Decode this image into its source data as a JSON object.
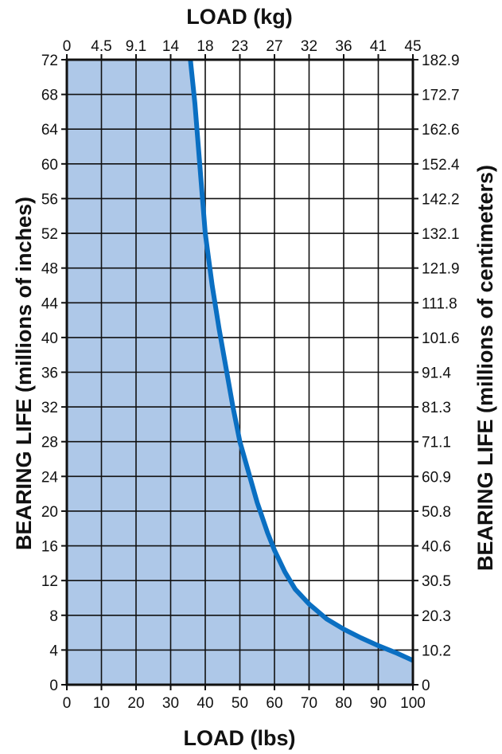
{
  "chart_data": {
    "type": "area",
    "title": "",
    "xlabel_bottom": "LOAD  (lbs)",
    "xlabel_top": "LOAD  (kg)",
    "ylabel_left": "BEARING LIFE (millions of inches)",
    "ylabel_right": "BEARING LIFE (millions of centimeters)",
    "xlim": [
      0,
      100
    ],
    "ylim": [
      0,
      72
    ],
    "grid": true,
    "x_ticks_bottom": [
      {
        "value": 0,
        "label": "0"
      },
      {
        "value": 10,
        "label": "10"
      },
      {
        "value": 20,
        "label": "20"
      },
      {
        "value": 30,
        "label": "30"
      },
      {
        "value": 40,
        "label": "40"
      },
      {
        "value": 50,
        "label": "50"
      },
      {
        "value": 60,
        "label": "60"
      },
      {
        "value": 70,
        "label": "70"
      },
      {
        "value": 80,
        "label": "80"
      },
      {
        "value": 90,
        "label": "90"
      },
      {
        "value": 100,
        "label": "100"
      }
    ],
    "x_ticks_top": [
      {
        "value": 0,
        "label": "0"
      },
      {
        "value": 10,
        "label": "4.5"
      },
      {
        "value": 20,
        "label": "9.1"
      },
      {
        "value": 30,
        "label": "14"
      },
      {
        "value": 40,
        "label": "18"
      },
      {
        "value": 50,
        "label": "23"
      },
      {
        "value": 60,
        "label": "27"
      },
      {
        "value": 70,
        "label": "32"
      },
      {
        "value": 80,
        "label": "36"
      },
      {
        "value": 90,
        "label": "41"
      },
      {
        "value": 100,
        "label": "45"
      }
    ],
    "y_ticks_left": [
      {
        "value": 0,
        "label": "0"
      },
      {
        "value": 4,
        "label": "4"
      },
      {
        "value": 8,
        "label": "8"
      },
      {
        "value": 12,
        "label": "12"
      },
      {
        "value": 16,
        "label": "16"
      },
      {
        "value": 20,
        "label": "20"
      },
      {
        "value": 24,
        "label": "24"
      },
      {
        "value": 28,
        "label": "28"
      },
      {
        "value": 32,
        "label": "32"
      },
      {
        "value": 36,
        "label": "36"
      },
      {
        "value": 40,
        "label": "40"
      },
      {
        "value": 44,
        "label": "44"
      },
      {
        "value": 48,
        "label": "48"
      },
      {
        "value": 52,
        "label": "52"
      },
      {
        "value": 56,
        "label": "56"
      },
      {
        "value": 60,
        "label": "60"
      },
      {
        "value": 64,
        "label": "64"
      },
      {
        "value": 68,
        "label": "68"
      },
      {
        "value": 72,
        "label": "72"
      }
    ],
    "y_ticks_right": [
      {
        "value": 0,
        "label": "0"
      },
      {
        "value": 4,
        "label": "10.2"
      },
      {
        "value": 8,
        "label": "20.3"
      },
      {
        "value": 12,
        "label": "30.5"
      },
      {
        "value": 16,
        "label": "40.6"
      },
      {
        "value": 20,
        "label": "50.8"
      },
      {
        "value": 24,
        "label": "60.9"
      },
      {
        "value": 28,
        "label": "71.1"
      },
      {
        "value": 32,
        "label": "81.3"
      },
      {
        "value": 36,
        "label": "91.4"
      },
      {
        "value": 40,
        "label": "101.6"
      },
      {
        "value": 44,
        "label": "111.8"
      },
      {
        "value": 48,
        "label": "121.9"
      },
      {
        "value": 52,
        "label": "132.1"
      },
      {
        "value": 56,
        "label": "142.2"
      },
      {
        "value": 60,
        "label": "152.4"
      },
      {
        "value": 64,
        "label": "162.6"
      },
      {
        "value": 68,
        "label": "172.7"
      },
      {
        "value": 72,
        "label": "182.9"
      }
    ],
    "series": [
      {
        "color": "#0a6fc2",
        "fill": "#aec8e8",
        "points": [
          {
            "x": 35.7,
            "y": 72
          },
          {
            "x": 37,
            "y": 67
          },
          {
            "x": 38,
            "y": 62
          },
          {
            "x": 39,
            "y": 57
          },
          {
            "x": 40,
            "y": 52
          },
          {
            "x": 41,
            "y": 49
          },
          {
            "x": 42,
            "y": 46
          },
          {
            "x": 44,
            "y": 41
          },
          {
            "x": 46,
            "y": 36.5
          },
          {
            "x": 48,
            "y": 32
          },
          {
            "x": 50,
            "y": 28
          },
          {
            "x": 52.5,
            "y": 24.5
          },
          {
            "x": 55,
            "y": 21
          },
          {
            "x": 58,
            "y": 17.5
          },
          {
            "x": 60,
            "y": 15.5
          },
          {
            "x": 63,
            "y": 13
          },
          {
            "x": 66,
            "y": 11
          },
          {
            "x": 70,
            "y": 9.3
          },
          {
            "x": 75,
            "y": 7.6
          },
          {
            "x": 80,
            "y": 6.4
          },
          {
            "x": 85,
            "y": 5.4
          },
          {
            "x": 90,
            "y": 4.5
          },
          {
            "x": 95,
            "y": 3.7
          },
          {
            "x": 100,
            "y": 2.8
          }
        ]
      }
    ]
  }
}
